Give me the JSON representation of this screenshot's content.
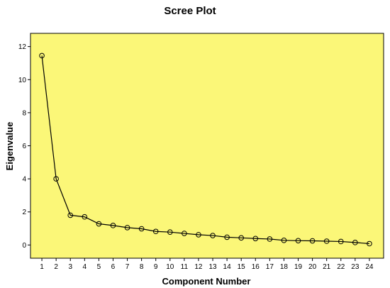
{
  "chart_data": {
    "type": "line",
    "title": "Scree Plot",
    "xlabel": "Component Number",
    "ylabel": "Eigenvalue",
    "x": [
      1,
      2,
      3,
      4,
      5,
      6,
      7,
      8,
      9,
      10,
      11,
      12,
      13,
      14,
      15,
      16,
      17,
      18,
      19,
      20,
      21,
      22,
      23,
      24
    ],
    "series": [
      {
        "values": [
          11.45,
          4.0,
          1.8,
          1.7,
          1.28,
          1.18,
          1.05,
          0.98,
          0.82,
          0.78,
          0.7,
          0.62,
          0.57,
          0.47,
          0.43,
          0.39,
          0.36,
          0.28,
          0.26,
          0.25,
          0.23,
          0.21,
          0.15,
          0.08
        ]
      }
    ],
    "xlim": [
      0.2,
      25
    ],
    "ylim": [
      -0.8,
      12.8
    ],
    "yticks": [
      0,
      2,
      4,
      6,
      8,
      10,
      12
    ],
    "grid": false,
    "marker": "open-circle",
    "colors": {
      "plot_background": "#fbf778",
      "line": "#000000"
    }
  }
}
